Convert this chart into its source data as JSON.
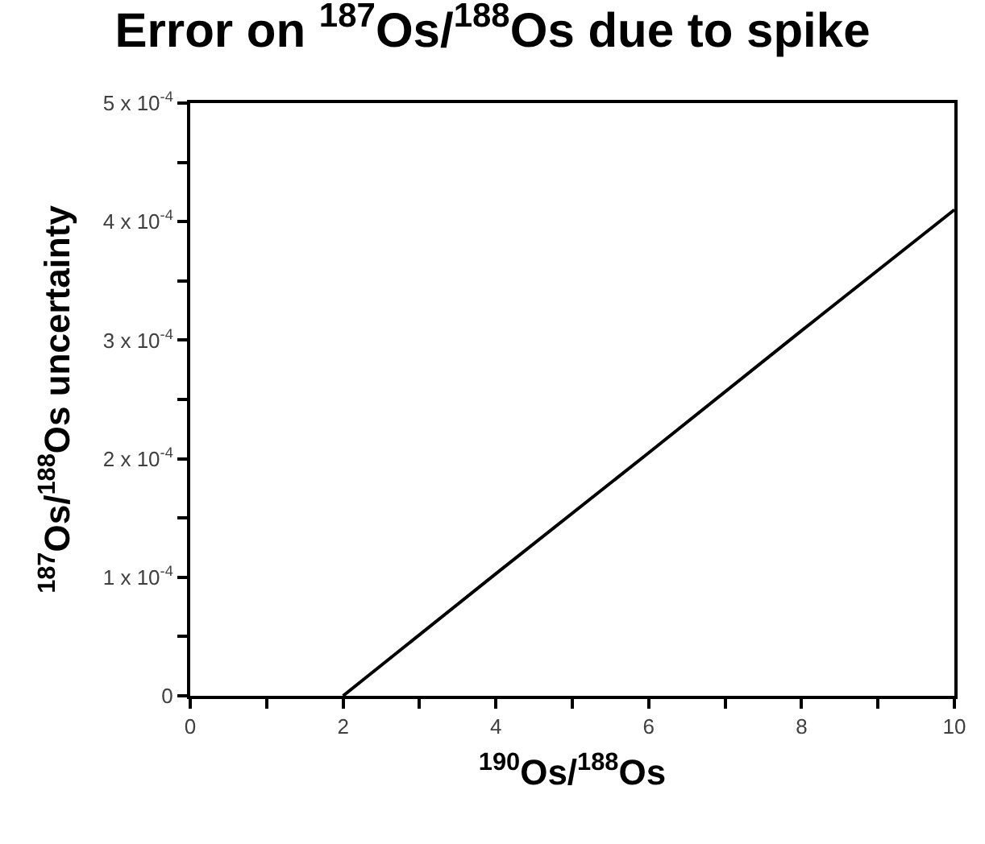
{
  "chart_data": {
    "type": "line",
    "title": "Error on $^{187}$Os/$^{188}$Os due to spike",
    "xlabel": "$^{190}$Os/$^{188}$Os",
    "ylabel": "$^{187}$Os/$^{188}$Os uncertainty",
    "x": [
      2,
      4,
      6,
      8,
      10
    ],
    "series": [
      {
        "color": "#000000",
        "values": [
          0,
          0.000103,
          0.000205,
          0.000308,
          0.00041
        ]
      }
    ],
    "xlim": [
      0,
      10
    ],
    "xticks": [
      0,
      {
        "value": 1,
        "label": null
      },
      2,
      {
        "value": 3,
        "label": null
      },
      4,
      {
        "value": 5,
        "label": null
      },
      6,
      {
        "value": 7,
        "label": null
      },
      8,
      {
        "value": 9,
        "label": null
      },
      10
    ],
    "ylim": [
      0,
      0.0005
    ],
    "yticks": [
      {
        "value": 0,
        "label": "0"
      },
      {
        "value": 5e-05,
        "label": null
      },
      {
        "value": 0.0001,
        "label": "1 x 10$^{-4}$"
      },
      {
        "value": 0.00015,
        "label": null
      },
      {
        "value": 0.0002,
        "label": "2 x 10$^{-4}$"
      },
      {
        "value": 0.00025,
        "label": null
      },
      {
        "value": 0.0003,
        "label": "3 x 10$^{-4}$"
      },
      {
        "value": 0.00035,
        "label": null
      },
      {
        "value": 0.0004,
        "label": "4 x 10$^{-4}$"
      },
      {
        "value": 0.00045,
        "label": null
      },
      {
        "value": 0.0005,
        "label": "5 x 10$^{-4}$"
      }
    ],
    "grid": false,
    "legend": false,
    "marker": "none",
    "line_style": "solid"
  }
}
